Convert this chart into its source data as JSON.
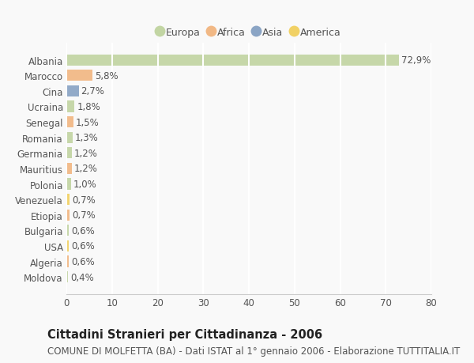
{
  "categories": [
    "Albania",
    "Marocco",
    "Cina",
    "Ucraina",
    "Senegal",
    "Romania",
    "Germania",
    "Mauritius",
    "Polonia",
    "Venezuela",
    "Etiopia",
    "Bulgaria",
    "USA",
    "Algeria",
    "Moldova"
  ],
  "values": [
    72.9,
    5.8,
    2.7,
    1.8,
    1.5,
    1.3,
    1.2,
    1.2,
    1.0,
    0.7,
    0.7,
    0.6,
    0.6,
    0.6,
    0.4
  ],
  "labels": [
    "72,9%",
    "5,8%",
    "2,7%",
    "1,8%",
    "1,5%",
    "1,3%",
    "1,2%",
    "1,2%",
    "1,0%",
    "0,7%",
    "0,7%",
    "0,6%",
    "0,6%",
    "0,6%",
    "0,4%"
  ],
  "bar_colors": [
    "#b5cc8e",
    "#f0a868",
    "#7090b8",
    "#b5cc8e",
    "#f0a868",
    "#b5cc8e",
    "#b5cc8e",
    "#f0a868",
    "#b5cc8e",
    "#f0c840",
    "#f0a868",
    "#b5cc8e",
    "#f0c840",
    "#f0a868",
    "#b5cc8e"
  ],
  "legend_labels": [
    "Europa",
    "Africa",
    "Asia",
    "America"
  ],
  "legend_colors": [
    "#b5cc8e",
    "#f0a868",
    "#7090b8",
    "#f0c840"
  ],
  "title": "Cittadini Stranieri per Cittadinanza - 2006",
  "subtitle": "COMUNE DI MOLFETTA (BA) - Dati ISTAT al 1° gennaio 2006 - Elaborazione TUTTITALIA.IT",
  "xlim": [
    0,
    80
  ],
  "xticks": [
    0,
    10,
    20,
    30,
    40,
    50,
    60,
    70,
    80
  ],
  "background_color": "#f9f9f9",
  "grid_color": "#ffffff",
  "bar_height": 0.72,
  "title_fontsize": 10.5,
  "subtitle_fontsize": 8.5,
  "tick_fontsize": 8.5,
  "label_fontsize": 8.5,
  "legend_fontsize": 9
}
